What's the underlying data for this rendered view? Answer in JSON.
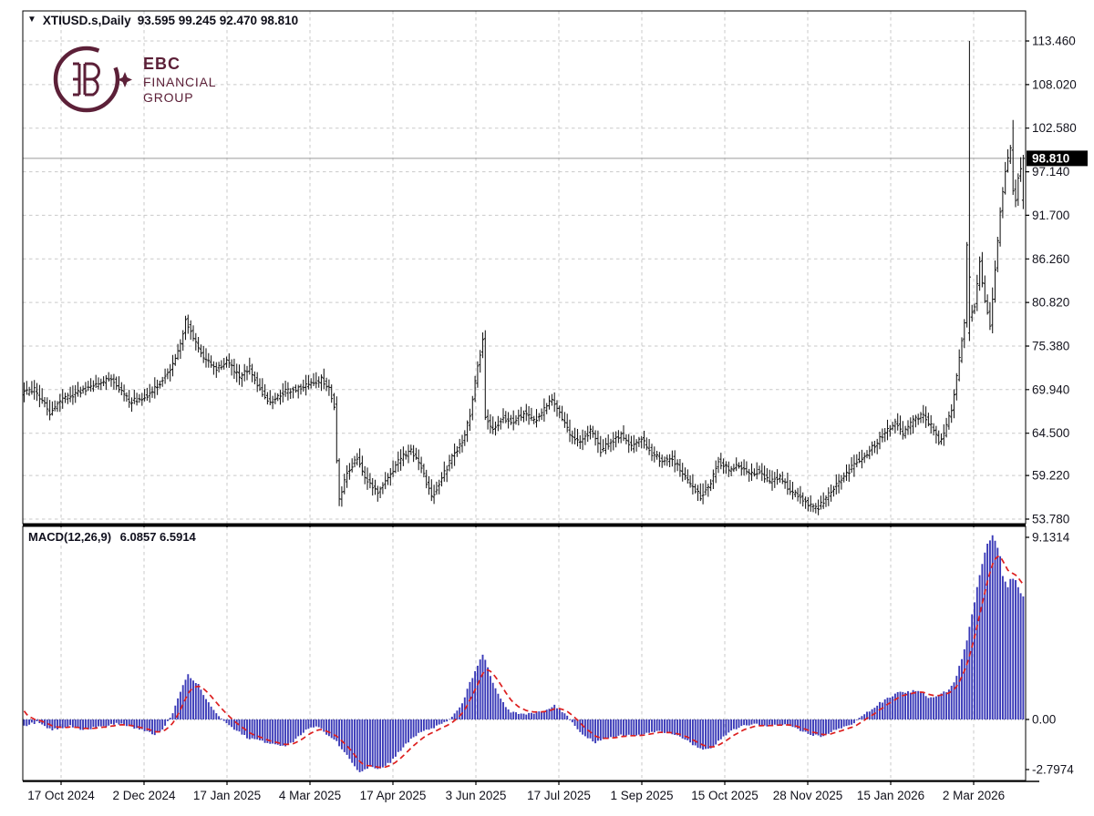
{
  "title": {
    "dropdown_glyph": "▼",
    "symbol_period": "XTIUSD.s,Daily",
    "ohlc": "93.595 99.245 92.470 98.810"
  },
  "logo": {
    "line1": "EBC",
    "line2": "FINANCIAL",
    "line3": "GROUP",
    "color": "#5c2038"
  },
  "macd_label": {
    "name": "MACD(12,26,9)",
    "values": "6.0857 6.5914"
  },
  "chart_data": {
    "type": "ohlc+macd",
    "symbol": "XTIUSD.s",
    "timeframe": "Daily",
    "ohlc_display": {
      "open": "93.595",
      "high": "99.245",
      "low": "92.470",
      "close": "98.810"
    },
    "current_price": 98.81,
    "current_price_label": "98.810",
    "price_axis_labels": [
      "113.460",
      "108.020",
      "102.580",
      "97.140",
      "91.700",
      "86.260",
      "80.820",
      "75.380",
      "69.940",
      "64.500",
      "59.220",
      "53.780"
    ],
    "price_axis_values": [
      113.46,
      108.02,
      102.58,
      97.14,
      91.7,
      86.26,
      80.82,
      75.38,
      69.94,
      64.5,
      59.22,
      53.78
    ],
    "date_labels": [
      "17 Oct 2024",
      "2 Dec 2024",
      "17 Jan 2025",
      "4 Mar 2025",
      "17 Apr 2025",
      "3 Jun 2025",
      "17 Jul 2025",
      "1 Sep 2025",
      "15 Oct 2025",
      "28 Nov 2025",
      "15 Jan 2026",
      "2 Mar 2026"
    ],
    "macd": {
      "params": "12,26,9",
      "macd_value": 6.0857,
      "signal_value": 6.5914,
      "axis_labels": [
        "9.1314",
        "0.00",
        "-2.7974"
      ],
      "axis_values": [
        9.1314,
        0.0,
        -2.7974
      ],
      "max": 9.1314,
      "min": -2.7974
    },
    "bar_count": 391,
    "price_trend_anchors": [
      [
        0,
        69.5
      ],
      [
        5,
        69.9
      ],
      [
        11,
        67.1
      ],
      [
        15,
        68.6
      ],
      [
        22,
        69.6
      ],
      [
        28,
        70.4
      ],
      [
        35,
        71.5
      ],
      [
        42,
        68.4
      ],
      [
        48,
        69.0
      ],
      [
        52,
        70.0
      ],
      [
        58,
        72.4
      ],
      [
        62,
        75.5
      ],
      [
        64,
        78.6
      ],
      [
        67,
        76.4
      ],
      [
        71,
        74.0
      ],
      [
        76,
        72.4
      ],
      [
        80,
        73.6
      ],
      [
        85,
        71.4
      ],
      [
        89,
        72.6
      ],
      [
        93,
        70.0
      ],
      [
        97,
        68.2
      ],
      [
        102,
        69.6
      ],
      [
        107,
        70.0
      ],
      [
        112,
        70.6
      ],
      [
        117,
        71.2
      ],
      [
        120,
        70.0
      ],
      [
        122,
        68.0
      ],
      [
        123,
        61.0
      ],
      [
        124,
        56.4
      ],
      [
        127,
        59.6
      ],
      [
        131,
        61.4
      ],
      [
        135,
        58.4
      ],
      [
        139,
        56.9
      ],
      [
        143,
        59.0
      ],
      [
        148,
        61.4
      ],
      [
        152,
        62.4
      ],
      [
        156,
        60.4
      ],
      [
        160,
        56.4
      ],
      [
        164,
        59.0
      ],
      [
        168,
        61.4
      ],
      [
        172,
        63.4
      ],
      [
        175,
        66.8
      ],
      [
        178,
        72.8
      ],
      [
        180,
        76.2
      ],
      [
        181,
        66.4
      ],
      [
        184,
        65.0
      ],
      [
        188,
        66.4
      ],
      [
        192,
        66.0
      ],
      [
        196,
        67.0
      ],
      [
        200,
        66.0
      ],
      [
        204,
        67.4
      ],
      [
        207,
        68.9
      ],
      [
        210,
        67.0
      ],
      [
        214,
        64.4
      ],
      [
        218,
        63.4
      ],
      [
        222,
        64.8
      ],
      [
        226,
        62.4
      ],
      [
        230,
        63.4
      ],
      [
        234,
        64.4
      ],
      [
        238,
        62.8
      ],
      [
        242,
        63.8
      ],
      [
        246,
        62.0
      ],
      [
        250,
        61.0
      ],
      [
        254,
        61.4
      ],
      [
        258,
        59.4
      ],
      [
        262,
        57.8
      ],
      [
        265,
        56.6
      ],
      [
        269,
        58.4
      ],
      [
        272,
        61.0
      ],
      [
        276,
        60.0
      ],
      [
        280,
        60.4
      ],
      [
        284,
        59.4
      ],
      [
        288,
        59.8
      ],
      [
        292,
        58.4
      ],
      [
        296,
        59.0
      ],
      [
        300,
        57.4
      ],
      [
        304,
        56.4
      ],
      [
        308,
        55.4
      ],
      [
        311,
        55.2
      ],
      [
        314,
        56.4
      ],
      [
        318,
        58.0
      ],
      [
        322,
        59.4
      ],
      [
        326,
        61.0
      ],
      [
        330,
        62.0
      ],
      [
        334,
        63.4
      ],
      [
        338,
        65.0
      ],
      [
        341,
        65.8
      ],
      [
        344,
        64.4
      ],
      [
        348,
        66.0
      ],
      [
        352,
        66.8
      ],
      [
        355,
        65.4
      ],
      [
        358,
        63.4
      ],
      [
        360,
        64.4
      ],
      [
        363,
        67.4
      ],
      [
        365,
        71.4
      ],
      [
        367,
        76.0
      ],
      [
        368,
        78.0
      ],
      [
        369,
        88.0
      ],
      [
        370,
        79.0
      ],
      [
        372,
        80.4
      ],
      [
        374,
        86.0
      ],
      [
        376,
        81.0
      ],
      [
        378,
        78.0
      ],
      [
        380,
        85.0
      ],
      [
        382,
        92.0
      ],
      [
        384,
        97.4
      ],
      [
        386,
        100.0
      ],
      [
        387,
        95.0
      ],
      [
        388,
        93.4
      ],
      [
        389,
        96.5
      ],
      [
        390,
        97.8
      ]
    ],
    "macd_anchors": [
      [
        0,
        -0.3
      ],
      [
        5,
        -0.15
      ],
      [
        11,
        -0.5
      ],
      [
        18,
        -0.3
      ],
      [
        23,
        -0.5
      ],
      [
        30,
        -0.35
      ],
      [
        37,
        -0.2
      ],
      [
        44,
        -0.45
      ],
      [
        51,
        -0.75
      ],
      [
        55,
        -0.35
      ],
      [
        58,
        0.3
      ],
      [
        61,
        1.4
      ],
      [
        64,
        2.2
      ],
      [
        68,
        1.7
      ],
      [
        72,
        0.8
      ],
      [
        76,
        0.15
      ],
      [
        81,
        -0.4
      ],
      [
        87,
        -0.9
      ],
      [
        94,
        -1.1
      ],
      [
        101,
        -1.35
      ],
      [
        106,
        -1.0
      ],
      [
        110,
        -0.5
      ],
      [
        114,
        -0.35
      ],
      [
        116,
        -0.5
      ],
      [
        122,
        -1.1
      ],
      [
        126,
        -1.8
      ],
      [
        131,
        -2.6
      ],
      [
        135,
        -2.3
      ],
      [
        139,
        -2.45
      ],
      [
        143,
        -2.1
      ],
      [
        149,
        -1.2
      ],
      [
        155,
        -0.6
      ],
      [
        161,
        -0.35
      ],
      [
        165,
        -0.1
      ],
      [
        168,
        0.25
      ],
      [
        171,
        0.8
      ],
      [
        174,
        1.8
      ],
      [
        177,
        2.7
      ],
      [
        179,
        3.15
      ],
      [
        180,
        2.9
      ],
      [
        183,
        1.8
      ],
      [
        187,
        0.8
      ],
      [
        190,
        0.35
      ],
      [
        195,
        0.25
      ],
      [
        199,
        0.3
      ],
      [
        204,
        0.45
      ],
      [
        207,
        0.7
      ],
      [
        211,
        0.3
      ],
      [
        214,
        -0.2
      ],
      [
        218,
        -0.7
      ],
      [
        223,
        -1.15
      ],
      [
        228,
        -0.95
      ],
      [
        233,
        -0.75
      ],
      [
        238,
        -0.8
      ],
      [
        244,
        -0.7
      ],
      [
        248,
        -0.55
      ],
      [
        253,
        -0.7
      ],
      [
        258,
        -1.0
      ],
      [
        263,
        -1.4
      ],
      [
        267,
        -1.5
      ],
      [
        272,
        -1.0
      ],
      [
        276,
        -0.55
      ],
      [
        281,
        -0.3
      ],
      [
        286,
        -0.25
      ],
      [
        292,
        -0.3
      ],
      [
        296,
        -0.25
      ],
      [
        301,
        -0.45
      ],
      [
        306,
        -0.7
      ],
      [
        311,
        -0.85
      ],
      [
        316,
        -0.55
      ],
      [
        320,
        -0.4
      ],
      [
        324,
        -0.15
      ],
      [
        327,
        0.2
      ],
      [
        331,
        0.5
      ],
      [
        334,
        0.8
      ],
      [
        338,
        1.1
      ],
      [
        342,
        1.4
      ],
      [
        345,
        1.35
      ],
      [
        349,
        1.45
      ],
      [
        352,
        1.15
      ],
      [
        355,
        1.05
      ],
      [
        358,
        1.25
      ],
      [
        360,
        1.4
      ],
      [
        363,
        1.8
      ],
      [
        365,
        2.6
      ],
      [
        368,
        3.9
      ],
      [
        370,
        5.2
      ],
      [
        372,
        6.5
      ],
      [
        374,
        7.7
      ],
      [
        376,
        8.7
      ],
      [
        378,
        9.13
      ],
      [
        379,
        8.9
      ],
      [
        381,
        8.1
      ],
      [
        382,
        7.1
      ],
      [
        384,
        6.6
      ],
      [
        385,
        7.0
      ],
      [
        387,
        6.9
      ],
      [
        388,
        6.5
      ],
      [
        389,
        6.2
      ],
      [
        390,
        6.0857
      ]
    ],
    "special_bars": {
      "369": {
        "high": 113.46,
        "low": 76.0,
        "open": 77.0,
        "close": 84.0
      },
      "386": {
        "high": 103.6
      },
      "390": {
        "open": 93.595,
        "high": 99.245,
        "low": 92.47,
        "close": 98.81
      }
    },
    "colors": {
      "bar": "#161616",
      "histogram": "#3a3ab8",
      "signal": "#dd1f1f",
      "grid": "#c9c9c9",
      "price_line": "#9a9a9a",
      "label_bg": "#000000",
      "label_fg": "#ffffff",
      "axis_text": "#14141e",
      "border": "#000000"
    }
  }
}
